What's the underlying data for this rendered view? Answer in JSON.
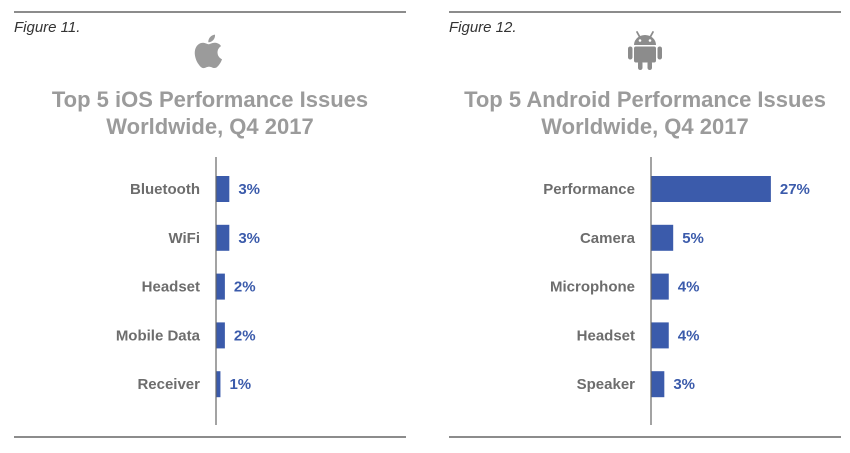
{
  "colors": {
    "bar": "#3b5bab",
    "axis": "#666666",
    "title": "#9b9b9b",
    "category": "#6d6d6d",
    "rule": "#8c8c8c"
  },
  "figures": [
    {
      "figure_label": "Figure 11.",
      "logo_icon": "apple-logo-icon",
      "title_line1": "Top 5 iOS Performance Issues",
      "title_line2": "Worldwide, Q4 2017"
    },
    {
      "figure_label": "Figure 12.",
      "logo_icon": "android-logo-icon",
      "title_line1": "Top 5 Android Performance Issues",
      "title_line2": "Worldwide, Q4 2017"
    }
  ],
  "chart_data": [
    {
      "type": "bar",
      "orientation": "horizontal",
      "title": "Top 5 iOS Performance Issues Worldwide, Q4 2017",
      "categories": [
        "Bluetooth",
        "WiFi",
        "Headset",
        "Mobile Data",
        "Receiver"
      ],
      "values": [
        3,
        3,
        2,
        2,
        1
      ],
      "value_labels": [
        "3%",
        "3%",
        "2%",
        "2%",
        "1%"
      ],
      "xlim": [
        0,
        30
      ],
      "grid": false,
      "legend": "none"
    },
    {
      "type": "bar",
      "orientation": "horizontal",
      "title": "Top 5 Android Performance Issues Worldwide, Q4 2017",
      "categories": [
        "Performance",
        "Camera",
        "Microphone",
        "Headset",
        "Speaker"
      ],
      "values": [
        27,
        5,
        4,
        4,
        3
      ],
      "value_labels": [
        "27%",
        "5%",
        "4%",
        "4%",
        "3%"
      ],
      "xlim": [
        0,
        30
      ],
      "grid": false,
      "legend": "none"
    }
  ]
}
